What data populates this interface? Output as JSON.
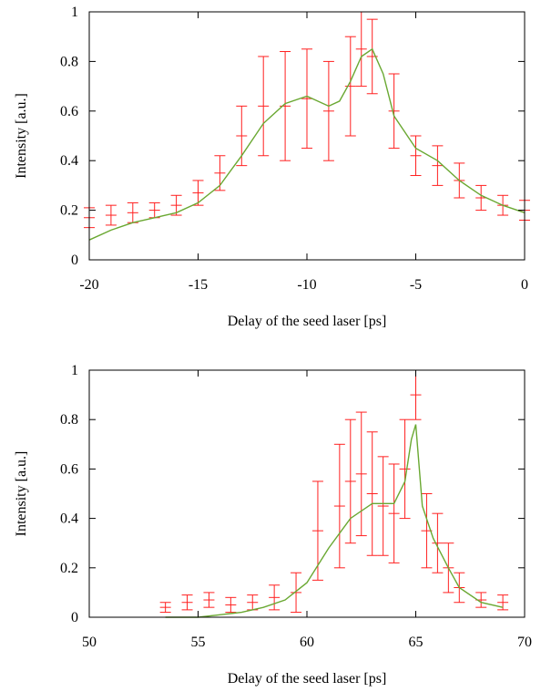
{
  "chart_data": [
    {
      "type": "scatter",
      "xlabel": "Delay of the seed laser [ps]",
      "ylabel": "Intensity [a.u.]",
      "xlim": [
        -20,
        0
      ],
      "ylim": [
        0,
        1
      ],
      "xticks": [
        -20,
        -15,
        -10,
        -5,
        0
      ],
      "yticks": [
        0,
        0.2,
        0.4,
        0.6,
        0.8,
        1
      ],
      "grid": false,
      "series": [
        {
          "kind": "points_with_error_bars",
          "color": "#ff2020",
          "x": [
            -20,
            -19,
            -18,
            -17,
            -16,
            -15,
            -14,
            -13,
            -12,
            -11,
            -10,
            -9,
            -8,
            -7.5,
            -7,
            -6,
            -5,
            -4,
            -3,
            -2,
            -1,
            0
          ],
          "y": [
            0.17,
            0.18,
            0.19,
            0.2,
            0.22,
            0.27,
            0.35,
            0.5,
            0.62,
            0.62,
            0.65,
            0.6,
            0.7,
            0.85,
            0.82,
            0.6,
            0.42,
            0.38,
            0.32,
            0.25,
            0.22,
            0.2
          ],
          "err": [
            0.04,
            0.04,
            0.04,
            0.03,
            0.04,
            0.05,
            0.07,
            0.12,
            0.2,
            0.22,
            0.2,
            0.2,
            0.2,
            0.15,
            0.15,
            0.15,
            0.08,
            0.08,
            0.07,
            0.05,
            0.04,
            0.04
          ]
        },
        {
          "kind": "fit_curve",
          "color": "#6aa832",
          "x": [
            -20,
            -19,
            -18,
            -17,
            -16,
            -15,
            -14,
            -13,
            -12,
            -11,
            -10,
            -9,
            -8.5,
            -8,
            -7.5,
            -7,
            -6.5,
            -6,
            -5,
            -4,
            -3,
            -2,
            -1,
            0
          ],
          "y": [
            0.08,
            0.12,
            0.15,
            0.17,
            0.19,
            0.23,
            0.3,
            0.42,
            0.55,
            0.63,
            0.66,
            0.62,
            0.64,
            0.72,
            0.82,
            0.85,
            0.75,
            0.58,
            0.45,
            0.4,
            0.32,
            0.26,
            0.22,
            0.19
          ]
        }
      ]
    },
    {
      "type": "scatter",
      "xlabel": "Delay of the seed laser [ps]",
      "ylabel": "Intensity [a.u.]",
      "xlim": [
        50,
        70
      ],
      "ylim": [
        0,
        1
      ],
      "xticks": [
        50,
        55,
        60,
        65,
        70
      ],
      "yticks": [
        0,
        0.2,
        0.4,
        0.6,
        0.8,
        1
      ],
      "grid": false,
      "series": [
        {
          "kind": "points_with_error_bars",
          "color": "#ff2020",
          "x": [
            53.5,
            54.5,
            55.5,
            56.5,
            57.5,
            58.5,
            59.5,
            60.5,
            61.5,
            62,
            62.5,
            63,
            63.5,
            64,
            64.5,
            65,
            65.5,
            66,
            66.5,
            67,
            68,
            69
          ],
          "y": [
            0.04,
            0.06,
            0.07,
            0.05,
            0.06,
            0.08,
            0.1,
            0.35,
            0.45,
            0.55,
            0.58,
            0.5,
            0.45,
            0.42,
            0.6,
            0.9,
            0.35,
            0.3,
            0.2,
            0.12,
            0.07,
            0.06
          ],
          "err": [
            0.02,
            0.03,
            0.03,
            0.03,
            0.03,
            0.05,
            0.08,
            0.2,
            0.25,
            0.25,
            0.25,
            0.25,
            0.2,
            0.2,
            0.2,
            0.1,
            0.15,
            0.12,
            0.1,
            0.06,
            0.03,
            0.03
          ]
        },
        {
          "kind": "fit_curve",
          "color": "#6aa832",
          "x": [
            53.5,
            55,
            56,
            57,
            58,
            59,
            60,
            61,
            62,
            63,
            64,
            64.5,
            64.8,
            65,
            65.3,
            65.8,
            66.5,
            67,
            68,
            69
          ],
          "y": [
            0,
            0,
            0.01,
            0.02,
            0.04,
            0.07,
            0.14,
            0.28,
            0.4,
            0.46,
            0.46,
            0.55,
            0.72,
            0.78,
            0.45,
            0.32,
            0.2,
            0.12,
            0.06,
            0.04
          ]
        }
      ]
    }
  ]
}
